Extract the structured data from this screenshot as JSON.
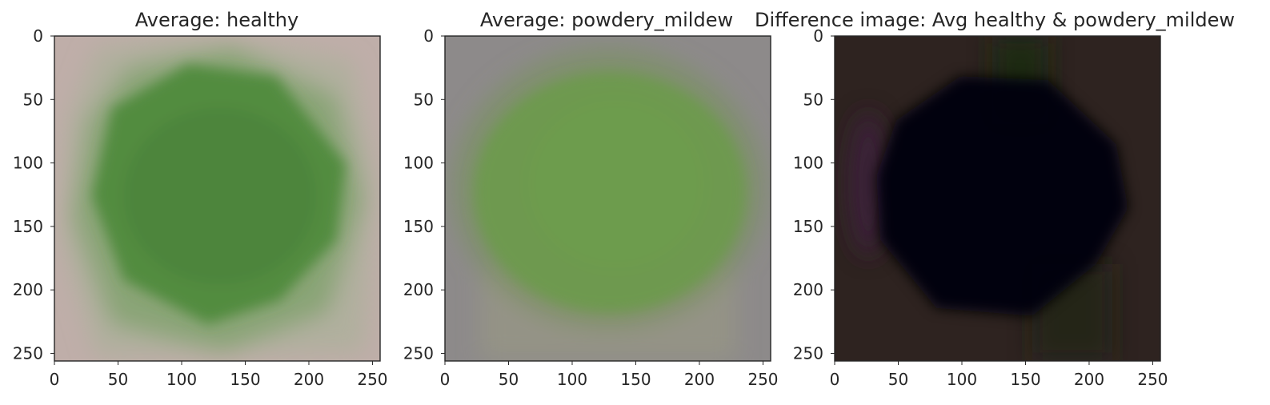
{
  "chart_data": [
    {
      "type": "heatmap",
      "title": "Average: healthy",
      "xlabel": "",
      "ylabel": "",
      "xlim": [
        0,
        256
      ],
      "ylim": [
        256,
        0
      ],
      "xticks": [
        0,
        50,
        100,
        150,
        200,
        250
      ],
      "yticks": [
        0,
        50,
        100,
        150,
        200,
        250
      ],
      "grid": false,
      "colors": {
        "background": "#bfaea9",
        "leaf": "#4f8a3d"
      }
    },
    {
      "type": "heatmap",
      "title": "Average: powdery_mildew",
      "xlabel": "",
      "ylabel": "",
      "xlim": [
        0,
        256
      ],
      "ylim": [
        256,
        0
      ],
      "xticks": [
        0,
        50,
        100,
        150,
        200,
        250
      ],
      "yticks": [
        0,
        50,
        100,
        150,
        200,
        250
      ],
      "grid": false,
      "colors": {
        "background": "#8d8a8a",
        "leaf": "#6d9a4e"
      }
    },
    {
      "type": "heatmap",
      "title": "Difference image: Avg healthy & powdery_mildew",
      "xlabel": "",
      "ylabel": "",
      "xlim": [
        0,
        256
      ],
      "ylim": [
        256,
        0
      ],
      "xticks": [
        0,
        50,
        100,
        150,
        200,
        250
      ],
      "yticks": [
        0,
        50,
        100,
        150,
        200,
        250
      ],
      "grid": false,
      "colors": {
        "background": "#2e2320",
        "leaf": "#060307"
      }
    }
  ]
}
